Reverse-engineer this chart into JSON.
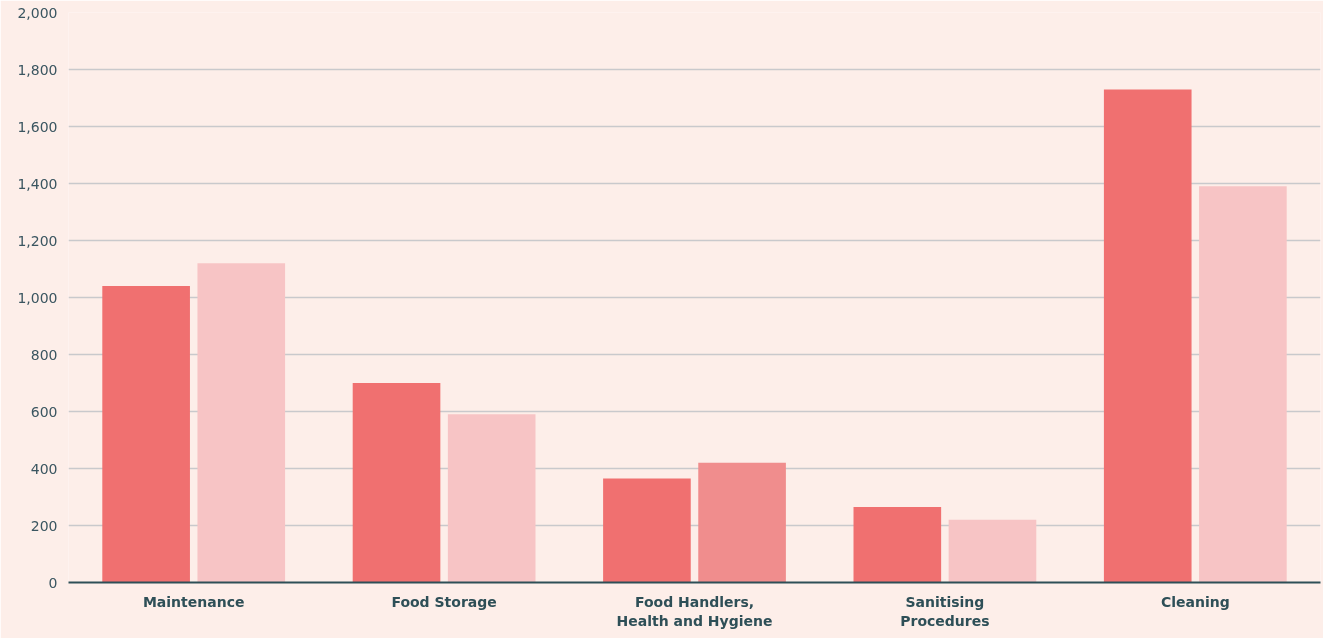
{
  "chart_data": {
    "type": "bar",
    "categories": [
      "Maintenance",
      "Food Storage",
      "Food Handlers,\nHealth and Hygiene",
      "Sanitising\nProcedures",
      "Cleaning"
    ],
    "series": [
      {
        "color": "#f07070",
        "values": [
          1040,
          700,
          365,
          265,
          1730
        ]
      },
      {
        "color": "#f7c4c5",
        "colors": [
          null,
          null,
          "#f08d8d",
          null,
          null
        ],
        "values": [
          1120,
          590,
          420,
          220,
          1390
        ]
      }
    ],
    "ylim": [
      0,
      2000
    ],
    "yticks": [
      0,
      200,
      400,
      600,
      800,
      {
        "value": 1000,
        "label": "1,000"
      },
      {
        "value": 1200,
        "label": "1,200"
      },
      {
        "value": 1400,
        "label": "1,400"
      },
      {
        "value": 1600,
        "label": "1,600"
      },
      {
        "value": 1800,
        "label": "1,800"
      },
      {
        "value": 2000,
        "label": "2,000"
      }
    ],
    "grid": "y"
  }
}
